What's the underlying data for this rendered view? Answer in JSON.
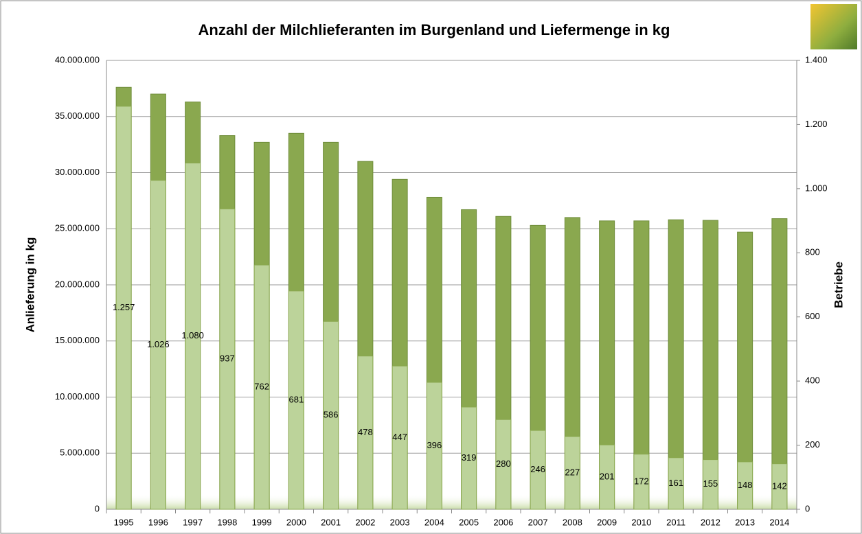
{
  "chart_data": {
    "type": "bar",
    "title": "Anzahl der Milchlieferanten im Burgenland und Liefermenge in kg",
    "y_label": "Anlieferung in kg",
    "y2_label": "Betriebe",
    "categories": [
      "1995",
      "1996",
      "1997",
      "1998",
      "1999",
      "2000",
      "2001",
      "2002",
      "2003",
      "2004",
      "2005",
      "2006",
      "2007",
      "2008",
      "2009",
      "2010",
      "2011",
      "2012",
      "2013",
      "2014"
    ],
    "series": [
      {
        "color": "#8aa84f",
        "values": [
          37600000,
          37000000,
          36300000,
          33300000,
          32700000,
          33500000,
          32700000,
          31000000,
          29400000,
          27800000,
          26700000,
          26100000,
          25300000,
          26000000,
          25700000,
          25700000,
          25800000,
          25750000,
          24700000,
          25900000
        ]
      },
      {
        "color": "#bcd39a",
        "axis": "y2",
        "values": [
          1257,
          1026,
          1080,
          937,
          762,
          681,
          586,
          478,
          447,
          396,
          319,
          280,
          246,
          227,
          201,
          172,
          161,
          155,
          148,
          142
        ],
        "value_labels": [
          "1.257",
          "1.026",
          "1.080",
          "937",
          "762",
          "681",
          "586",
          "478",
          "447",
          "396",
          "319",
          "280",
          "246",
          "227",
          "201",
          "172",
          "161",
          "155",
          "148",
          "142"
        ]
      }
    ],
    "ylim": [
      0,
      40000000
    ],
    "yticks": [
      0,
      {
        "value": 5000000,
        "label": "5.000.000"
      },
      {
        "value": 10000000,
        "label": "10.000.000"
      },
      {
        "value": 15000000,
        "label": "15.000.000"
      },
      {
        "value": 20000000,
        "label": "20.000.000"
      },
      {
        "value": 25000000,
        "label": "25.000.000"
      },
      {
        "value": 30000000,
        "label": "30.000.000"
      },
      {
        "value": 35000000,
        "label": "35.000.000"
      },
      {
        "value": 40000000,
        "label": "40.000.000"
      }
    ],
    "y2lim": [
      0,
      1400
    ],
    "y2ticks": [
      0,
      200,
      400,
      600,
      800,
      {
        "value": 1000,
        "label": "1.000"
      },
      {
        "value": 1200,
        "label": "1.200"
      },
      {
        "value": 1400,
        "label": "1.400"
      }
    ],
    "grid": true
  }
}
